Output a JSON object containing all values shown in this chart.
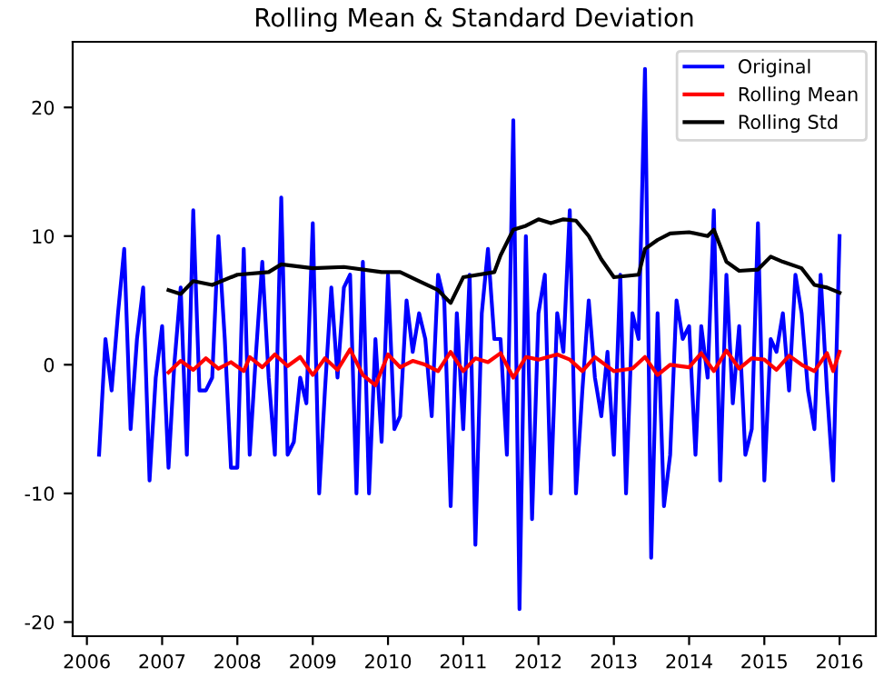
{
  "chart_data": {
    "type": "line",
    "title": "Rolling Mean & Standard Deviation",
    "xlim": [
      "2005-10-24",
      "2016-06-25"
    ],
    "ylim": [
      -21.1,
      25.1
    ],
    "xticks": [
      "2006",
      "2007",
      "2008",
      "2009",
      "2010",
      "2011",
      "2012",
      "2013",
      "2014",
      "2015",
      "2016"
    ],
    "yticks": [
      -20,
      -10,
      0,
      10,
      20
    ],
    "legend": "top right",
    "grid": false,
    "series": [
      {
        "name": "Original",
        "color": "#0000ff",
        "x": [
          "2006-03",
          "2006-04",
          "2006-05",
          "2006-06",
          "2006-07",
          "2006-08",
          "2006-09",
          "2006-10",
          "2006-11",
          "2006-12",
          "2007-01",
          "2007-02",
          "2007-03",
          "2007-04",
          "2007-05",
          "2007-06",
          "2007-07",
          "2007-08",
          "2007-09",
          "2007-10",
          "2007-11",
          "2007-12",
          "2008-01",
          "2008-02",
          "2008-03",
          "2008-04",
          "2008-05",
          "2008-06",
          "2008-07",
          "2008-08",
          "2008-09",
          "2008-10",
          "2008-11",
          "2008-12",
          "2009-01",
          "2009-02",
          "2009-03",
          "2009-04",
          "2009-05",
          "2009-06",
          "2009-07",
          "2009-08",
          "2009-09",
          "2009-10",
          "2009-11",
          "2009-12",
          "2010-01",
          "2010-02",
          "2010-03",
          "2010-04",
          "2010-05",
          "2010-06",
          "2010-07",
          "2010-08",
          "2010-09",
          "2010-10",
          "2010-11",
          "2010-12",
          "2011-01",
          "2011-02",
          "2011-03",
          "2011-04",
          "2011-05",
          "2011-06",
          "2011-07",
          "2011-08",
          "2011-09",
          "2011-10",
          "2011-11",
          "2011-12",
          "2012-01",
          "2012-02",
          "2012-03",
          "2012-04",
          "2012-05",
          "2012-06",
          "2012-07",
          "2012-08",
          "2012-09",
          "2012-10",
          "2012-11",
          "2012-12",
          "2013-01",
          "2013-02",
          "2013-03",
          "2013-04",
          "2013-05",
          "2013-06",
          "2013-07",
          "2013-08",
          "2013-09",
          "2013-10",
          "2013-11",
          "2013-12",
          "2014-01",
          "2014-02",
          "2014-03",
          "2014-04",
          "2014-05",
          "2014-06",
          "2014-07",
          "2014-08",
          "2014-09",
          "2014-10",
          "2014-11",
          "2014-12",
          "2015-01",
          "2015-02",
          "2015-03",
          "2015-04",
          "2015-05",
          "2015-06",
          "2015-07",
          "2015-08",
          "2015-09",
          "2015-10",
          "2015-11",
          "2015-12",
          "2016-01"
        ],
        "values": [
          -7,
          2,
          -2,
          4,
          9,
          -5,
          2,
          6,
          -9,
          -1,
          3,
          -8,
          0,
          6,
          -7,
          12,
          -2,
          -2,
          -1,
          10,
          2,
          -8,
          -8,
          9,
          -7,
          1,
          8,
          -1,
          -7,
          13,
          -7,
          -6,
          -1,
          -3,
          11,
          -10,
          -2,
          6,
          -1,
          6,
          7,
          -10,
          8,
          -10,
          2,
          -6,
          7,
          -5,
          -4,
          5,
          1,
          4,
          2,
          -4,
          7,
          5,
          -11,
          4,
          -5,
          7,
          -14,
          4,
          9,
          2,
          2,
          -7,
          19,
          -19,
          10,
          -12,
          4,
          7,
          -10,
          4,
          1,
          12,
          -10,
          -2,
          5,
          -1,
          -4,
          1,
          -7,
          7,
          -10,
          4,
          2,
          23,
          -15,
          4,
          -11,
          -7,
          5,
          2,
          3,
          -7,
          3,
          -1,
          12,
          -9,
          7,
          -3,
          3,
          -7,
          -5,
          11,
          -9,
          2,
          1,
          4,
          -2,
          7,
          4,
          -2,
          -5,
          7,
          -2,
          -9,
          10
        ]
      },
      {
        "name": "Rolling Mean",
        "color": "#ff0000",
        "x": [
          "2007-02",
          "2007-04",
          "2007-06",
          "2007-08",
          "2007-10",
          "2007-12",
          "2008-02",
          "2008-03",
          "2008-05",
          "2008-07",
          "2008-09",
          "2008-11",
          "2009-01",
          "2009-03",
          "2009-05",
          "2009-07",
          "2009-09",
          "2009-11",
          "2010-01",
          "2010-03",
          "2010-05",
          "2010-07",
          "2010-09",
          "2010-11",
          "2011-01",
          "2011-03",
          "2011-05",
          "2011-07",
          "2011-09",
          "2011-11",
          "2012-01",
          "2012-04",
          "2012-06",
          "2012-08",
          "2012-10",
          "2013-01",
          "2013-04",
          "2013-06",
          "2013-08",
          "2013-10",
          "2014-01",
          "2014-03",
          "2014-05",
          "2014-07",
          "2014-09",
          "2014-11",
          "2015-01",
          "2015-03",
          "2015-05",
          "2015-07",
          "2015-09",
          "2015-11",
          "2015-12",
          "2016-01"
        ],
        "values": [
          -0.6,
          0.3,
          -0.4,
          0.5,
          -0.3,
          0.2,
          -0.5,
          0.6,
          -0.2,
          0.8,
          -0.1,
          0.6,
          -0.8,
          0.5,
          -0.4,
          1.2,
          -0.8,
          -1.6,
          0.8,
          -0.2,
          0.3,
          0.0,
          -0.5,
          1.0,
          -0.5,
          0.5,
          0.2,
          0.9,
          -1.0,
          0.6,
          0.4,
          0.8,
          0.4,
          -0.5,
          0.6,
          -0.5,
          -0.3,
          0.6,
          -0.8,
          0.0,
          -0.2,
          0.9,
          -0.5,
          1.1,
          -0.3,
          0.5,
          0.4,
          -0.4,
          0.7,
          0.0,
          -0.5,
          0.9,
          -0.5,
          1.0
        ]
      },
      {
        "name": "Rolling Std",
        "color": "#000000",
        "x": [
          "2007-02",
          "2007-04",
          "2007-06",
          "2007-09",
          "2008-01",
          "2008-06",
          "2008-08",
          "2009-01",
          "2009-06",
          "2009-12",
          "2010-03",
          "2010-06",
          "2010-09",
          "2010-11",
          "2011-01",
          "2011-06",
          "2011-07",
          "2011-09",
          "2011-11",
          "2012-01",
          "2012-03",
          "2012-05",
          "2012-07",
          "2012-09",
          "2012-11",
          "2013-01",
          "2013-05",
          "2013-06",
          "2013-08",
          "2013-10",
          "2014-01",
          "2014-04",
          "2014-05",
          "2014-07",
          "2014-09",
          "2014-12",
          "2015-02",
          "2015-04",
          "2015-07",
          "2015-09",
          "2015-11",
          "2016-01"
        ],
        "values": [
          5.8,
          5.5,
          6.5,
          6.2,
          7.0,
          7.2,
          7.8,
          7.5,
          7.6,
          7.2,
          7.2,
          6.5,
          5.8,
          4.8,
          6.8,
          7.2,
          8.5,
          10.5,
          10.8,
          11.3,
          11.0,
          11.3,
          11.2,
          10.0,
          8.2,
          6.8,
          7.0,
          9.0,
          9.7,
          10.2,
          10.3,
          10.0,
          10.5,
          8.0,
          7.3,
          7.4,
          8.4,
          8.0,
          7.5,
          6.2,
          6.0,
          5.6
        ]
      }
    ]
  }
}
